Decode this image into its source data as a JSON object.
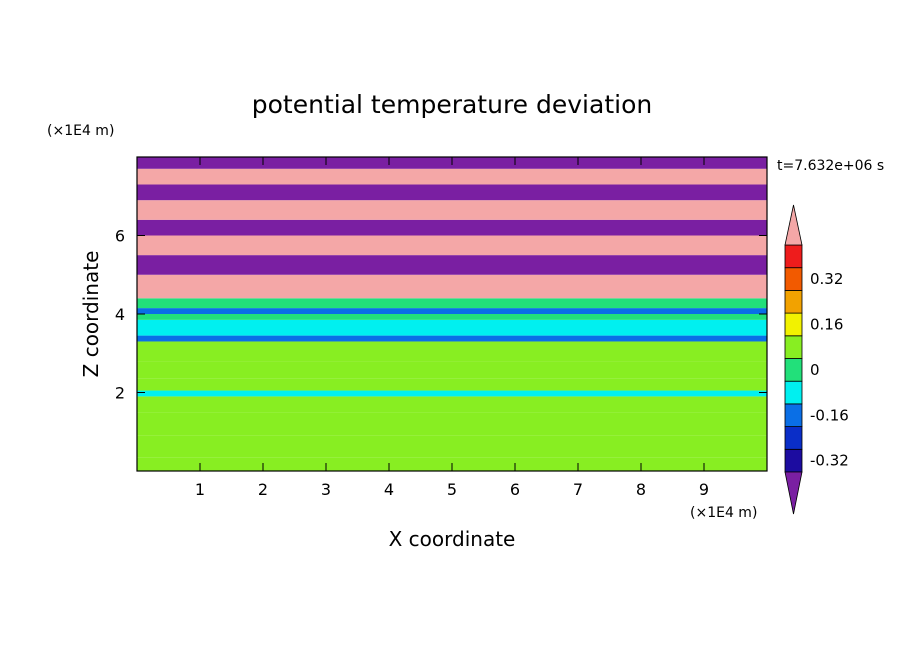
{
  "chart_data": {
    "type": "heatmap",
    "title": "potential temperature deviation",
    "xlabel": "X coordinate",
    "ylabel": "Z coordinate",
    "x_unit": "(×1E4 m)",
    "y_unit": "(×1E4 m)",
    "time_label": "t=7.632e+06 s",
    "xlim": [
      0,
      10
    ],
    "ylim": [
      0,
      8
    ],
    "x_ticks": [
      1,
      2,
      3,
      4,
      5,
      6,
      7,
      8,
      9
    ],
    "y_ticks": [
      2,
      4,
      6
    ],
    "grid": false,
    "colorbar": {
      "placement": "right",
      "levels": [
        -0.4,
        -0.32,
        -0.24,
        -0.16,
        -0.08,
        0,
        0.08,
        0.16,
        0.24,
        0.32,
        0.4
      ],
      "tick_labels": [
        "0.32",
        "0.16",
        "0",
        "-0.16",
        "-0.32"
      ],
      "tick_values": [
        0.32,
        0.16,
        0,
        -0.16,
        -0.32
      ],
      "under_color": "#7a1fa2",
      "over_color": "#f4a7a7",
      "colors": [
        "#1c0ca0",
        "#0a2ec8",
        "#0a6fe6",
        "#00f0f0",
        "#22e07a",
        "#88ee22",
        "#f2f200",
        "#f2a200",
        "#f25a00",
        "#ee1c1c"
      ]
    },
    "bands": [
      {
        "z": [
          0.0,
          0.35
        ],
        "value": 0.04
      },
      {
        "z": [
          0.35,
          0.9
        ],
        "value": 0.0
      },
      {
        "z": [
          0.9,
          1.5
        ],
        "value": 0.05
      },
      {
        "z": [
          1.5,
          1.9
        ],
        "value": 0.02
      },
      {
        "z": [
          1.9,
          2.05
        ],
        "value": -0.12
      },
      {
        "z": [
          2.05,
          2.35
        ],
        "value": 0.06
      },
      {
        "z": [
          2.35,
          2.8
        ],
        "value": 0.0
      },
      {
        "z": [
          2.8,
          3.3
        ],
        "value": 0.01
      },
      {
        "z": [
          3.3,
          3.45
        ],
        "value": -0.17
      },
      {
        "z": [
          3.45,
          3.85
        ],
        "value": -0.1
      },
      {
        "z": [
          3.85,
          4.0
        ],
        "value": -0.05
      },
      {
        "z": [
          4.0,
          4.15
        ],
        "value": -0.2
      },
      {
        "z": [
          4.15,
          4.4
        ],
        "value": -0.04
      },
      {
        "z": [
          4.4,
          5.0
        ],
        "value": 0.5
      },
      {
        "z": [
          5.0,
          5.5
        ],
        "value": -0.5
      },
      {
        "z": [
          5.5,
          6.0
        ],
        "value": 0.5
      },
      {
        "z": [
          6.0,
          6.4
        ],
        "value": -0.5
      },
      {
        "z": [
          6.4,
          6.9
        ],
        "value": 0.5
      },
      {
        "z": [
          6.9,
          7.3
        ],
        "value": -0.5
      },
      {
        "z": [
          7.3,
          7.7
        ],
        "value": 0.5
      },
      {
        "z": [
          7.7,
          8.0
        ],
        "value": -0.5
      }
    ]
  }
}
